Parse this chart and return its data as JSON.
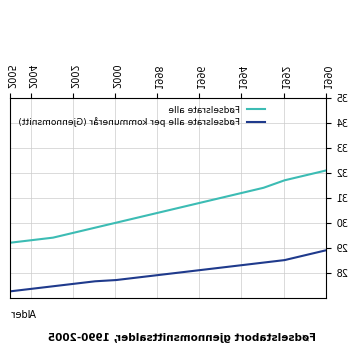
{
  "title": "Fødselstabort gjennomsnittsalder, 1990-2005",
  "ylabel": "Alder",
  "legend_1": "Fødselsrate alle",
  "legend_2": "Fødselsrate alle per kommunerår (Gjennomsnitt)",
  "years": [
    1990,
    1991,
    1992,
    1993,
    1994,
    1995,
    1996,
    1997,
    1998,
    1999,
    2000,
    2001,
    2002,
    2003,
    2004,
    2005
  ],
  "line1_values": [
    32.1,
    31.9,
    31.7,
    31.4,
    31.2,
    31.0,
    30.8,
    30.6,
    30.4,
    30.2,
    30.0,
    29.8,
    29.6,
    29.4,
    29.3,
    29.2
  ],
  "line2_values": [
    28.9,
    28.7,
    28.5,
    28.4,
    28.3,
    28.2,
    28.1,
    28.0,
    27.9,
    27.8,
    27.7,
    27.65,
    27.55,
    27.45,
    27.35,
    27.25
  ],
  "line1_color": "#3cbcb4",
  "line2_color": "#1f3a8c",
  "xtick_years": [
    1990,
    1992,
    1994,
    1996,
    1998,
    2000,
    2002,
    2004,
    2005
  ],
  "yticks": [
    28,
    29,
    30,
    31,
    32,
    33,
    34,
    35
  ],
  "background_color": "#ffffff",
  "grid_color": "#cccccc",
  "title_fontsize": 7.5,
  "legend_fontsize": 6.5,
  "tick_fontsize": 7
}
